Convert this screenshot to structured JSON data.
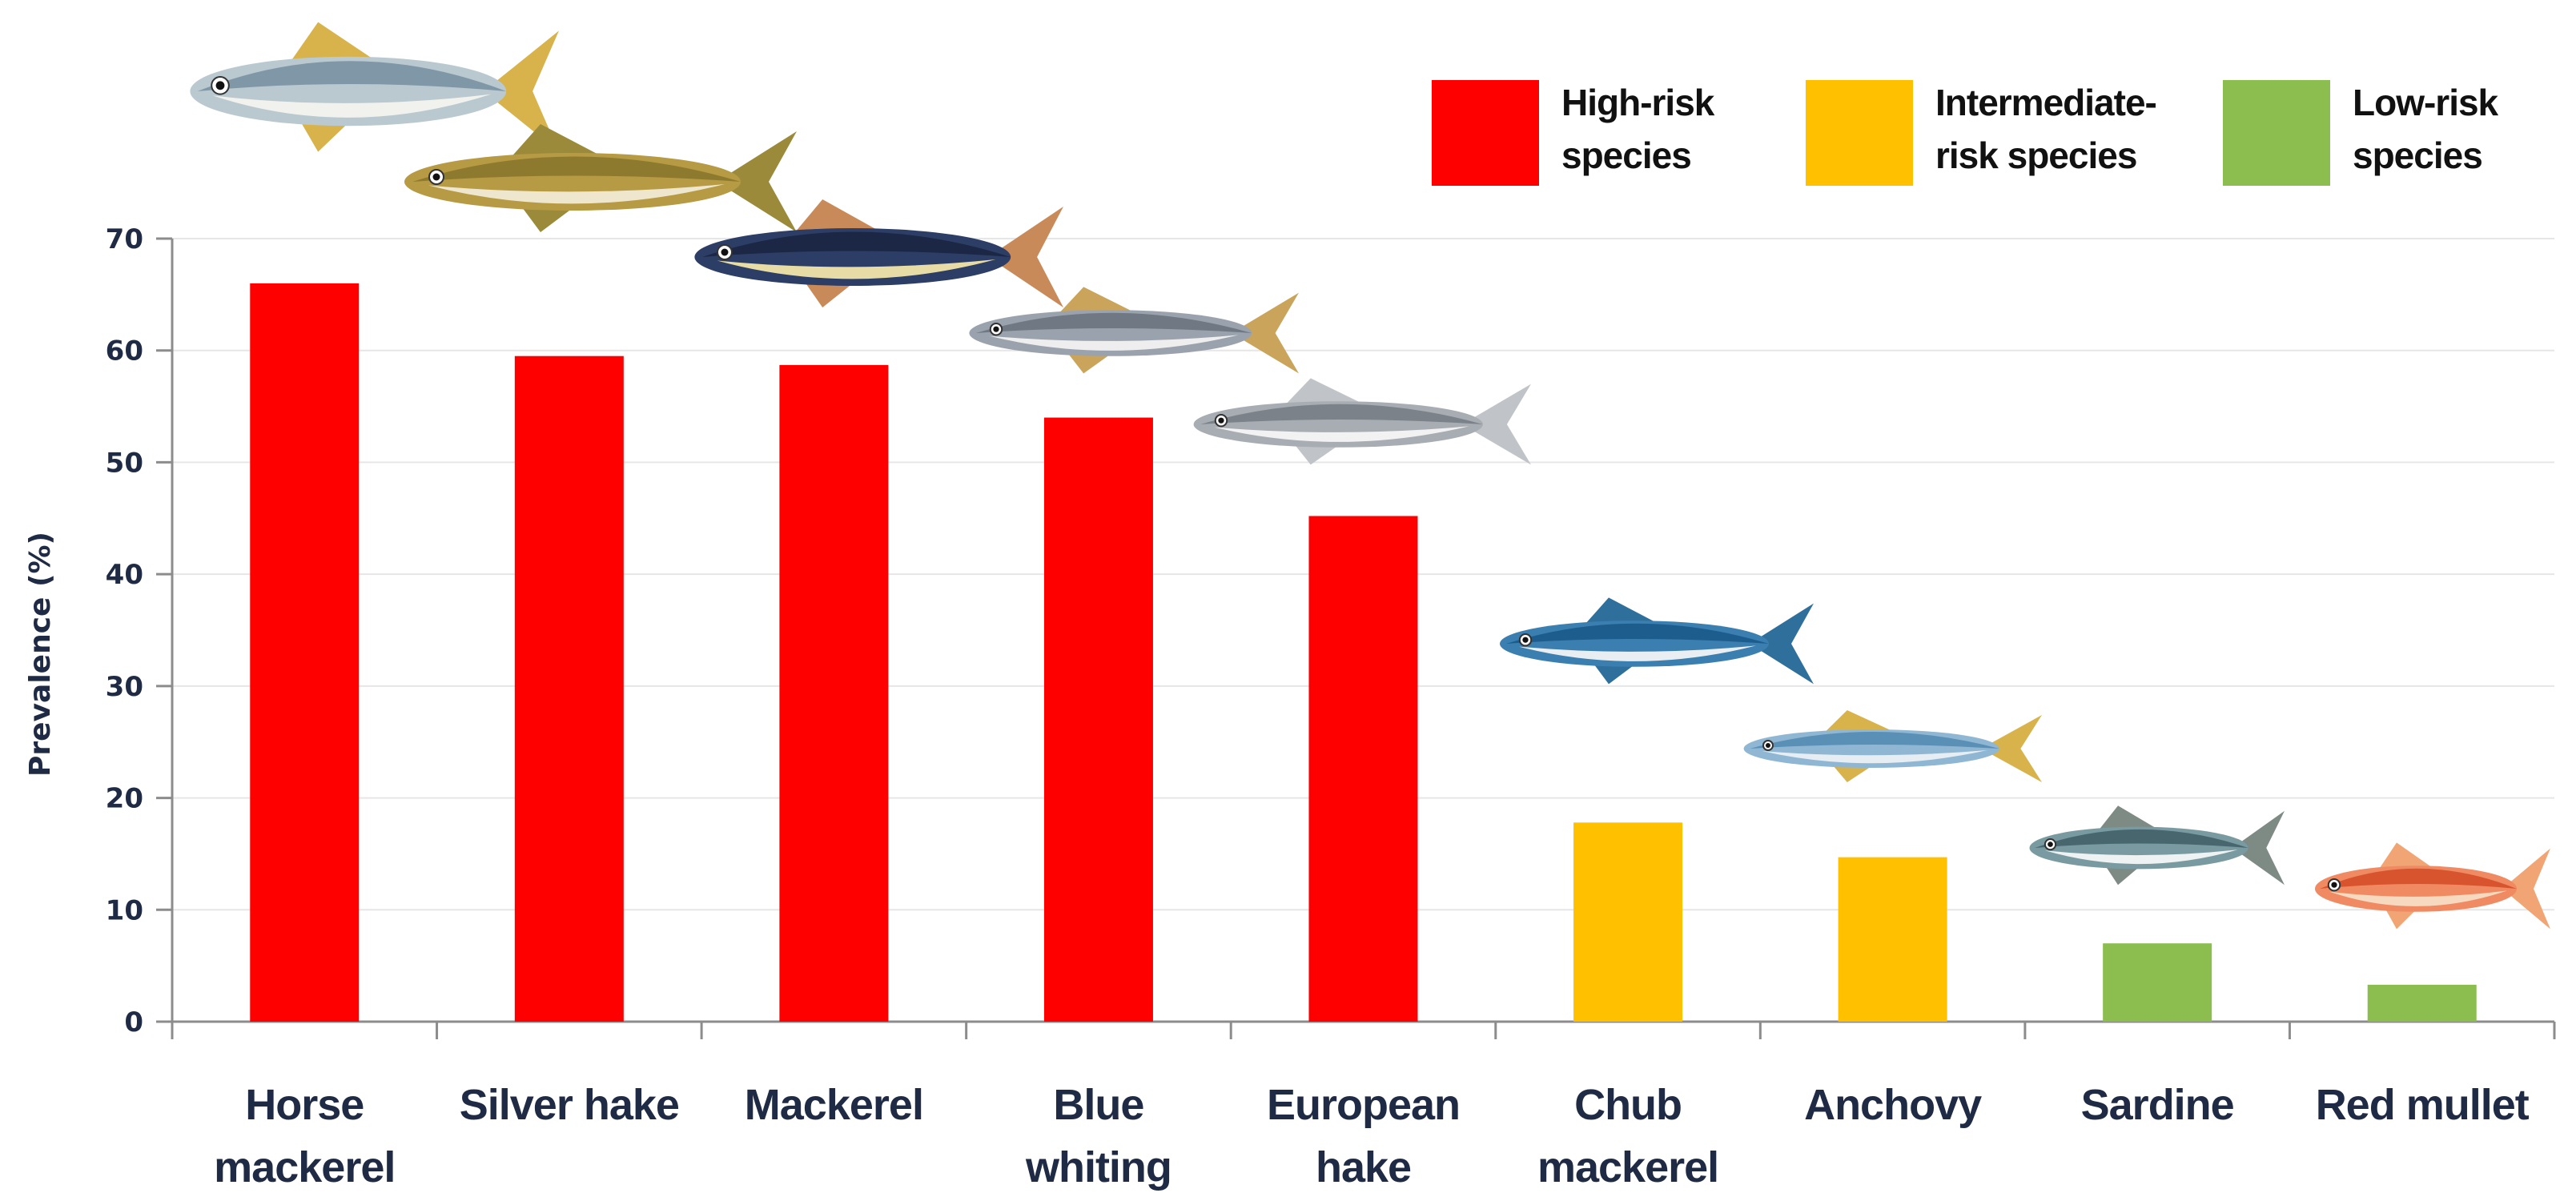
{
  "chart_data": {
    "type": "bar",
    "categories": [
      [
        "Horse",
        "mackerel"
      ],
      [
        "Silver hake"
      ],
      [
        "Mackerel"
      ],
      [
        "Blue",
        "whiting"
      ],
      [
        "European",
        "hake"
      ],
      [
        "Chub",
        "mackerel"
      ],
      [
        "Anchovy"
      ],
      [
        "Sardine"
      ],
      [
        "Red mullet"
      ]
    ],
    "values": [
      66,
      59.5,
      58.7,
      54,
      45.2,
      17.8,
      14.7,
      7,
      3.3
    ],
    "risk": [
      "high",
      "high",
      "high",
      "high",
      "high",
      "intermediate",
      "intermediate",
      "low",
      "low"
    ],
    "ylabel": "Prevalence (%)",
    "ylim": [
      0,
      70
    ],
    "yticks": [
      0,
      10,
      20,
      30,
      40,
      50,
      60,
      70
    ],
    "grid": true,
    "legend_position": "top-right",
    "legend": [
      {
        "key": "high",
        "lines": [
          "High-risk",
          "species"
        ],
        "color": "#ff0000"
      },
      {
        "key": "intermediate",
        "lines": [
          "Intermediate-",
          "risk species"
        ],
        "color": "#ffc000"
      },
      {
        "key": "low",
        "lines": [
          "Low-risk",
          "species"
        ],
        "color": "#8bbd4f"
      }
    ],
    "fish_illustrations": [
      "horse-mackerel-icon",
      "silver-hake-icon",
      "mackerel-icon",
      "blue-whiting-icon",
      "european-hake-icon",
      "chub-mackerel-icon",
      "anchovy-icon",
      "sardine-icon",
      "red-mullet-icon"
    ]
  }
}
